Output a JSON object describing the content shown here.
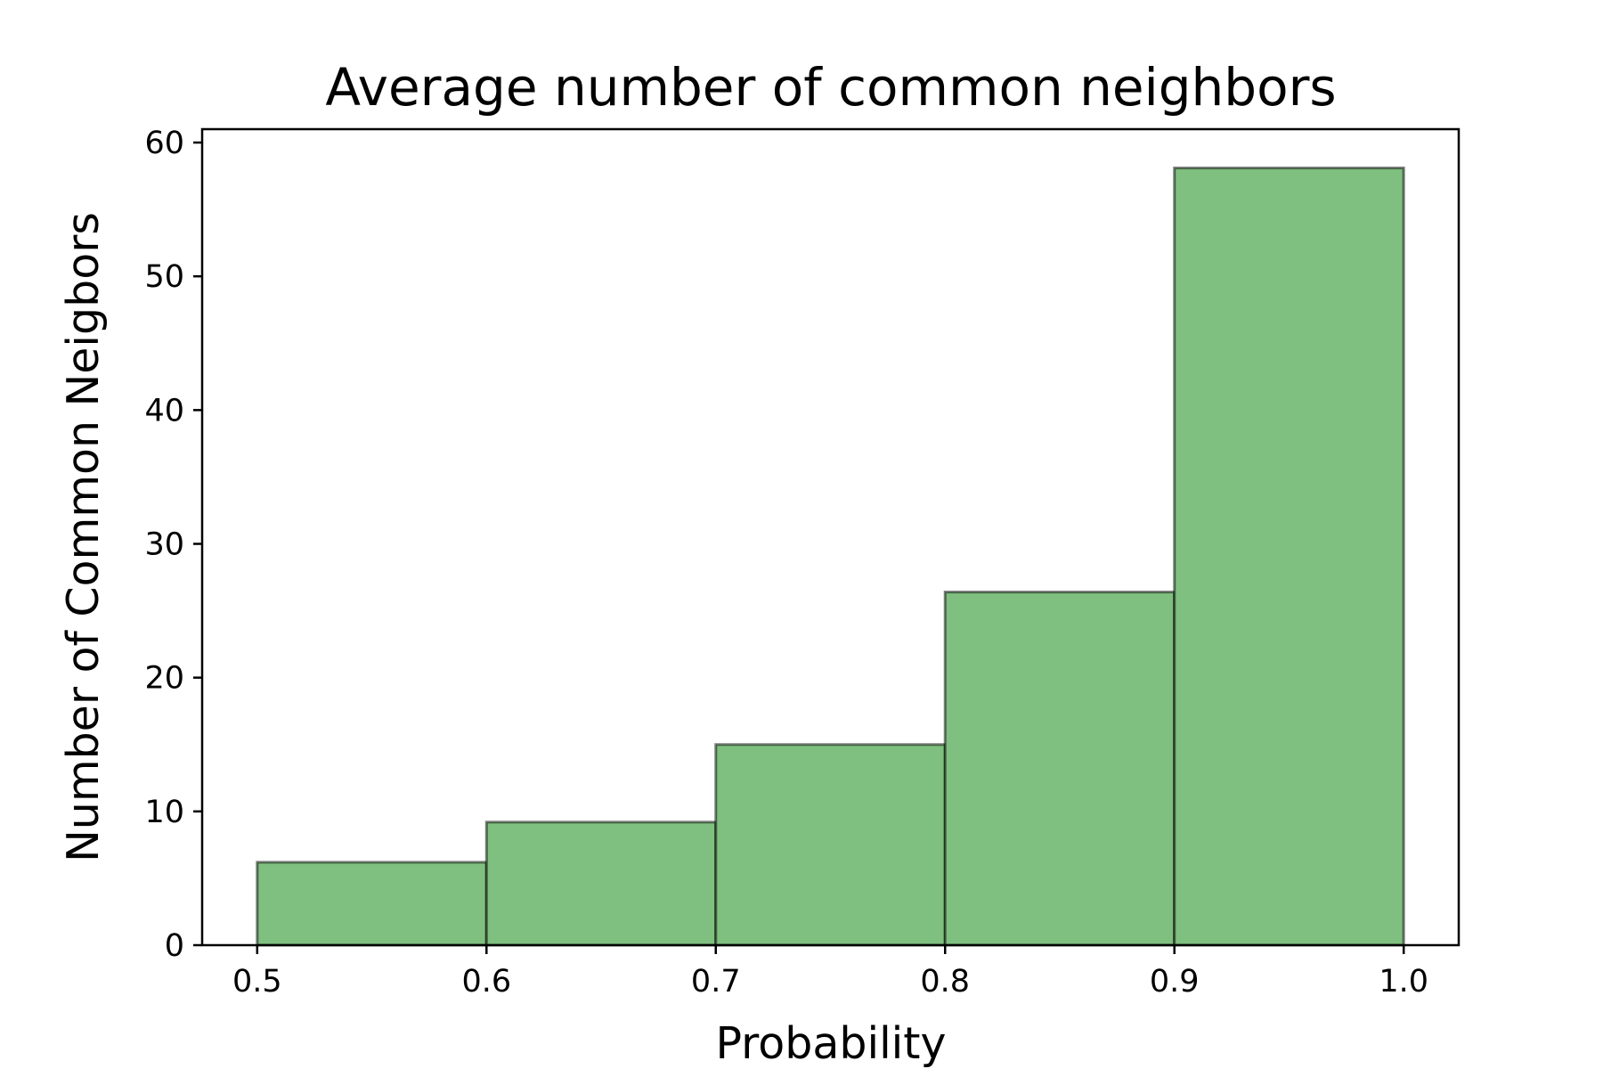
{
  "chart_data": {
    "type": "bar",
    "title": "Average number of common neighbors",
    "xlabel": "Probability",
    "ylabel": "Number of Common Neigbors",
    "bins": [
      {
        "x_start": 0.5,
        "x_end": 0.6,
        "value": 6.2
      },
      {
        "x_start": 0.6,
        "x_end": 0.7,
        "value": 9.2
      },
      {
        "x_start": 0.7,
        "x_end": 0.8,
        "value": 15.0
      },
      {
        "x_start": 0.8,
        "x_end": 0.9,
        "value": 26.4
      },
      {
        "x_start": 0.9,
        "x_end": 1.0,
        "value": 58.1
      }
    ],
    "xlim": [
      0.476,
      1.024
    ],
    "ylim": [
      0,
      61
    ],
    "xticks": [
      0.5,
      0.6,
      0.7,
      0.8,
      0.9,
      1.0
    ],
    "xtick_labels": [
      "0.5",
      "0.6",
      "0.7",
      "0.8",
      "0.9",
      "1.0"
    ],
    "yticks": [
      0,
      10,
      20,
      30,
      40,
      50,
      60
    ],
    "ytick_labels": [
      "0",
      "10",
      "20",
      "30",
      "40",
      "50",
      "60"
    ],
    "grid": false,
    "legend": "none",
    "colors": {
      "bar_fill": "#7fbf7f",
      "bar_edge": "#000000",
      "axis": "#000000",
      "text": "#000000"
    }
  }
}
